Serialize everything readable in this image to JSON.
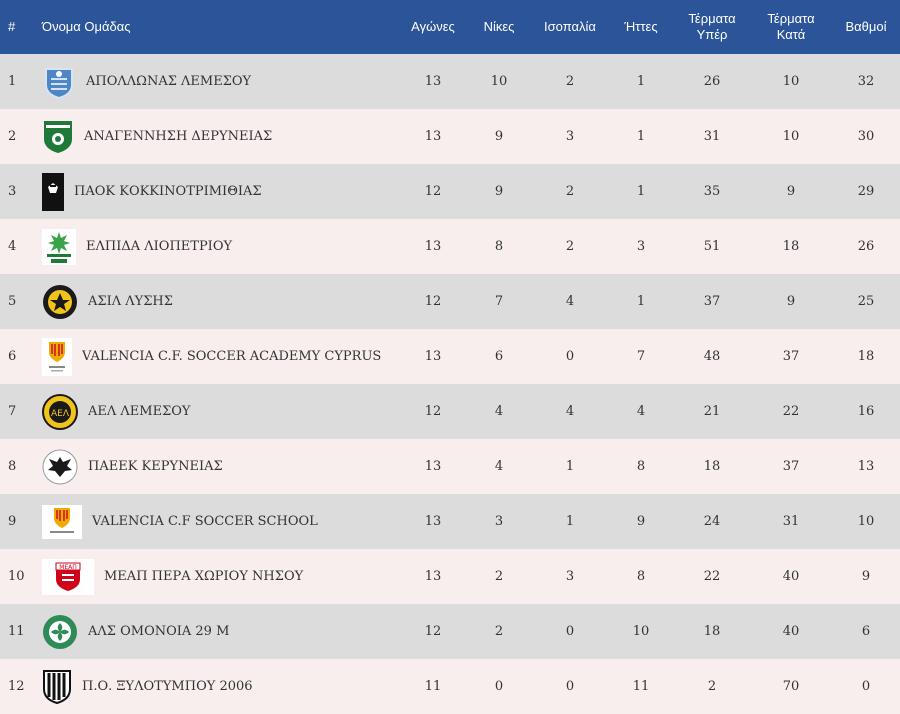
{
  "headers": {
    "rank": "#",
    "team": "Όνομα Ομάδας",
    "played": "Αγώνες",
    "wins": "Νίκες",
    "draws": "Ισοπαλία",
    "losses": "Ήττες",
    "goals_for_1": "Τέρματα",
    "goals_for_2": "Υπέρ",
    "goals_against_1": "Τέρματα",
    "goals_against_2": "Κατά",
    "points": "Βαθμοί"
  },
  "colors": {
    "header_bg": "#2b5598",
    "row_odd": "#dcdcdc",
    "row_even": "#f8eeee"
  },
  "rows": [
    {
      "rank": "1",
      "team": "ΑΠΟΛΛΩΝΑΣ ΛΕΜΕΣΟΥ",
      "played": "13",
      "wins": "10",
      "draws": "2",
      "losses": "1",
      "gf": "26",
      "ga": "10",
      "pts": "32",
      "logo": "apollon-crest-icon"
    },
    {
      "rank": "2",
      "team": "ΑΝΑΓΕΝΝΗΣΗ ΔΕΡΥΝΕΙΑΣ",
      "played": "13",
      "wins": "9",
      "draws": "3",
      "losses": "1",
      "gf": "31",
      "ga": "10",
      "pts": "30",
      "logo": "anagennisi-crest-icon"
    },
    {
      "rank": "3",
      "team": "ΠΑΟΚ ΚΟΚΚΙΝΟΤΡΙΜΙΘΙΑΣ",
      "played": "12",
      "wins": "9",
      "draws": "2",
      "losses": "1",
      "gf": "35",
      "ga": "9",
      "pts": "29",
      "logo": "paok-crest-icon"
    },
    {
      "rank": "4",
      "team": "ΕΛΠΙΔΑ ΛΙΟΠΕΤΡΙΟΥ",
      "played": "13",
      "wins": "8",
      "draws": "2",
      "losses": "3",
      "gf": "51",
      "ga": "18",
      "pts": "26",
      "logo": "elpida-crest-icon"
    },
    {
      "rank": "5",
      "team": "ΑΣΙΛ ΛΥΣΗΣ",
      "played": "12",
      "wins": "7",
      "draws": "4",
      "losses": "1",
      "gf": "37",
      "ga": "9",
      "pts": "25",
      "logo": "asil-crest-icon"
    },
    {
      "rank": "6",
      "team": "VALENCIA C.F. SOCCER ACADEMY CYPRUS",
      "played": "13",
      "wins": "6",
      "draws": "0",
      "losses": "7",
      "gf": "48",
      "ga": "37",
      "pts": "18",
      "logo": "valencia-crest-icon"
    },
    {
      "rank": "7",
      "team": "ΑΕΛ ΛΕΜΕΣΟΥ",
      "played": "12",
      "wins": "4",
      "draws": "4",
      "losses": "4",
      "gf": "21",
      "ga": "22",
      "pts": "16",
      "logo": "ael-crest-icon"
    },
    {
      "rank": "8",
      "team": "ΠΑΕΕΚ ΚΕΡΥΝΕΙΑΣ",
      "played": "13",
      "wins": "4",
      "draws": "1",
      "losses": "8",
      "gf": "18",
      "ga": "37",
      "pts": "13",
      "logo": "paeek-crest-icon"
    },
    {
      "rank": "9",
      "team": "VALENCIA C.F SOCCER SCHOOL",
      "played": "13",
      "wins": "3",
      "draws": "1",
      "losses": "9",
      "gf": "24",
      "ga": "31",
      "pts": "10",
      "logo": "valencia-school-crest-icon"
    },
    {
      "rank": "10",
      "team": "ΜΕΑΠ ΠΕΡΑ ΧΩΡΙΟΥ ΝΗΣΟΥ",
      "played": "13",
      "wins": "2",
      "draws": "3",
      "losses": "8",
      "gf": "22",
      "ga": "40",
      "pts": "9",
      "logo": "meap-crest-icon"
    },
    {
      "rank": "11",
      "team": "ΑΛΣ ΟΜΟΝΟΙΑ 29 Μ",
      "played": "12",
      "wins": "2",
      "draws": "0",
      "losses": "10",
      "gf": "18",
      "ga": "40",
      "pts": "6",
      "logo": "omonoia-crest-icon"
    },
    {
      "rank": "12",
      "team": "Π.Ο. ΞΥΛΟΤΥΜΠΟΥ 2006",
      "played": "11",
      "wins": "0",
      "draws": "0",
      "losses": "11",
      "gf": "2",
      "ga": "70",
      "pts": "0",
      "logo": "xylotympou-crest-icon"
    }
  ]
}
